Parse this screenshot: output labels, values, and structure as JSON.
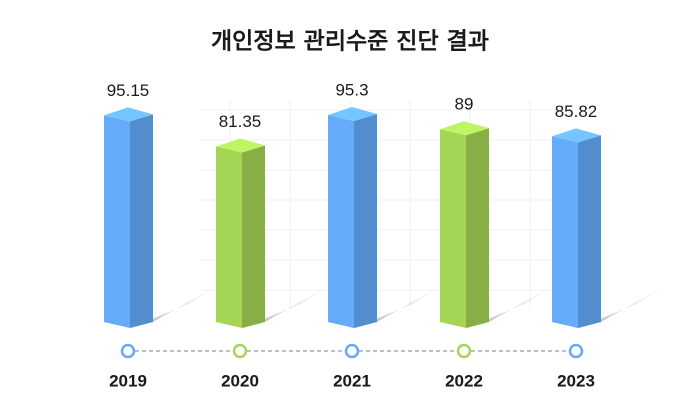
{
  "chart_data": {
    "type": "bar3d",
    "title": "개인정보 관리수준 진단 결과",
    "categories": [
      "2019",
      "2020",
      "2021",
      "2022",
      "2023"
    ],
    "values": [
      95.15,
      81.35,
      95.3,
      89,
      85.82
    ],
    "colors": [
      "#64acfa",
      "#a5d555",
      "#64acfa",
      "#a5d555",
      "#64acfa"
    ]
  }
}
